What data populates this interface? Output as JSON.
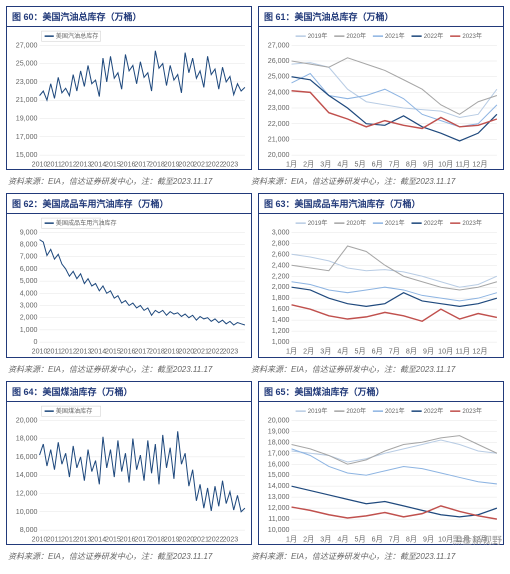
{
  "watermark": "黑金新视野",
  "source_text": "资料来源：EIA，信达证券研发中心，注：截至2023.11.17",
  "colors": {
    "border": "#223a7a",
    "title": "#223a7a",
    "grid": "#e5e5e5",
    "axis_text": "#666666"
  },
  "year_legend": {
    "labels": [
      "2019年",
      "2020年",
      "2021年",
      "2022年",
      "2023年"
    ],
    "colors": [
      "#b8cce4",
      "#a6a6a6",
      "#8db4e2",
      "#1f497d",
      "#c0504d"
    ]
  },
  "months": [
    "1月",
    "2月",
    "3月",
    "4月",
    "5月",
    "6月",
    "7月",
    "8月",
    "9月",
    "10月",
    "11月",
    "12月"
  ],
  "years_axis": [
    "2010",
    "2011",
    "2012",
    "2013",
    "2014",
    "2015",
    "2016",
    "2017",
    "2018",
    "2019",
    "2020",
    "2021",
    "2022",
    "2023"
  ],
  "charts": [
    {
      "id": "c60",
      "title": "图 60：美国汽油总库存（万桶）",
      "type": "line-timeseries",
      "legend_single": "美国汽油总库存",
      "legend_color": "#1f497d",
      "ylim": [
        15000,
        27000
      ],
      "ytick_step": 2000,
      "series": [
        {
          "color": "#1f497d",
          "width": 1,
          "data": [
            21500,
            22000,
            21000,
            22800,
            21200,
            23500,
            21800,
            22300,
            21500,
            23800,
            22000,
            24200,
            22500,
            24800,
            22800,
            23200,
            21400,
            25600,
            23000,
            25800,
            23400,
            24000,
            22200,
            26000,
            24200,
            24800,
            22800,
            25200,
            23500,
            24000,
            22000,
            26400,
            24500,
            25000,
            22600,
            24800,
            23200,
            23800,
            21800,
            26200,
            24000,
            25600,
            23400,
            24200,
            22400,
            25800,
            23800,
            24400,
            22200,
            24600,
            23000,
            23600,
            21600,
            22800,
            22000,
            22400
          ]
        }
      ]
    },
    {
      "id": "c61",
      "title": "图 61：美国汽油总库存（万桶）",
      "type": "line-monthly-multi",
      "ylim": [
        20000,
        27000
      ],
      "ytick_step": 1000,
      "series": [
        {
          "color": "#b8cce4",
          "width": 1,
          "data": [
            25800,
            25900,
            25600,
            24200,
            23400,
            23200,
            23000,
            22900,
            22800,
            22400,
            22600,
            24200
          ]
        },
        {
          "color": "#a6a6a6",
          "width": 1,
          "data": [
            26000,
            25800,
            25600,
            26200,
            25800,
            25400,
            24800,
            24200,
            23200,
            22600,
            23400,
            23800
          ]
        },
        {
          "color": "#8db4e2",
          "width": 1,
          "data": [
            24600,
            25200,
            23800,
            23600,
            23800,
            24200,
            23600,
            22600,
            22200,
            21800,
            22000,
            23200
          ]
        },
        {
          "color": "#1f497d",
          "width": 1.2,
          "data": [
            25000,
            24800,
            23800,
            23000,
            22000,
            21900,
            22500,
            21800,
            21400,
            20900,
            21400,
            22600
          ]
        },
        {
          "color": "#c0504d",
          "width": 1.4,
          "data": [
            24100,
            24000,
            22700,
            22300,
            21800,
            22200,
            21900,
            21700,
            22400,
            21800,
            21900,
            22300
          ]
        }
      ]
    },
    {
      "id": "c62",
      "title": "图 62：美国成品车用汽油库存（万桶）",
      "type": "line-timeseries",
      "legend_single": "美国成品车用汽油库存",
      "legend_color": "#1f497d",
      "ylim": [
        0,
        9000
      ],
      "ytick_step": 1000,
      "series": [
        {
          "color": "#1f497d",
          "width": 1,
          "data": [
            8400,
            8200,
            7100,
            7600,
            6800,
            7200,
            6400,
            6000,
            5400,
            5800,
            5200,
            5600,
            4800,
            5200,
            4600,
            4800,
            4200,
            4600,
            4000,
            4200,
            3600,
            3800,
            3200,
            3400,
            3000,
            3200,
            2800,
            3000,
            2600,
            2800,
            2200,
            2600,
            2400,
            2600,
            2200,
            2500,
            2300,
            2400,
            2100,
            2300,
            2000,
            2200,
            1800,
            2100,
            1900,
            2000,
            1700,
            1900,
            1600,
            1800,
            1500,
            1700,
            1400,
            1600,
            1500,
            1400
          ]
        }
      ]
    },
    {
      "id": "c63",
      "title": "图 63：美国成品车用汽油库存（万桶）",
      "type": "line-monthly-multi",
      "ylim": [
        1000,
        3000
      ],
      "ytick_step": 200,
      "series": [
        {
          "color": "#b8cce4",
          "width": 1,
          "data": [
            2600,
            2550,
            2480,
            2350,
            2300,
            2320,
            2280,
            2200,
            2100,
            2000,
            2050,
            2200
          ]
        },
        {
          "color": "#a6a6a6",
          "width": 1,
          "data": [
            2400,
            2350,
            2300,
            2750,
            2650,
            2400,
            2200,
            2100,
            2000,
            1950,
            2000,
            2100
          ]
        },
        {
          "color": "#8db4e2",
          "width": 1,
          "data": [
            2100,
            2050,
            1950,
            1900,
            1950,
            2000,
            1950,
            1850,
            1800,
            1750,
            1800,
            1900
          ]
        },
        {
          "color": "#1f497d",
          "width": 1.2,
          "data": [
            2000,
            1950,
            1800,
            1700,
            1650,
            1700,
            1900,
            1750,
            1700,
            1650,
            1700,
            1800
          ]
        },
        {
          "color": "#c0504d",
          "width": 1.4,
          "data": [
            1680,
            1600,
            1480,
            1420,
            1460,
            1540,
            1480,
            1380,
            1600,
            1420,
            1520,
            1450
          ]
        }
      ]
    },
    {
      "id": "c64",
      "title": "图 64：美国煤油库存（万桶）",
      "type": "line-timeseries",
      "legend_single": "美国煤油库存",
      "legend_color": "#1f497d",
      "ylim": [
        8000,
        20000
      ],
      "ytick_step": 2000,
      "series": [
        {
          "color": "#1f497d",
          "width": 1,
          "data": [
            16200,
            17400,
            15000,
            16800,
            14600,
            17600,
            15200,
            16400,
            13800,
            17200,
            14800,
            16000,
            13400,
            16800,
            14400,
            15600,
            13000,
            18200,
            14800,
            16800,
            13800,
            17800,
            14400,
            16400,
            13200,
            18000,
            14600,
            16200,
            13400,
            17800,
            14200,
            17400,
            13000,
            18400,
            14800,
            17000,
            13600,
            18800,
            15200,
            16400,
            12800,
            14600,
            11200,
            13000,
            10400,
            12600,
            10100,
            12800,
            10600,
            13400,
            10900,
            12200,
            10200,
            11800,
            10000,
            10400
          ]
        }
      ]
    },
    {
      "id": "c65",
      "title": "图 65：美国煤油库存（万桶）",
      "type": "line-monthly-multi",
      "ylim": [
        10000,
        20000
      ],
      "ytick_step": 1000,
      "series": [
        {
          "color": "#b8cce4",
          "width": 1,
          "data": [
            17200,
            17000,
            16800,
            16200,
            16500,
            17000,
            17400,
            17800,
            18200,
            17800,
            17200,
            17000
          ]
        },
        {
          "color": "#a6a6a6",
          "width": 1,
          "data": [
            17800,
            17400,
            16800,
            16000,
            16400,
            17200,
            17800,
            18000,
            18400,
            18600,
            17800,
            17000
          ]
        },
        {
          "color": "#8db4e2",
          "width": 1,
          "data": [
            17400,
            16800,
            15800,
            15200,
            15000,
            15400,
            15800,
            15600,
            15200,
            14800,
            14400,
            14200
          ]
        },
        {
          "color": "#1f497d",
          "width": 1.2,
          "data": [
            14000,
            13600,
            13200,
            12800,
            12400,
            12600,
            12200,
            11800,
            11400,
            11200,
            11400,
            12000
          ]
        },
        {
          "color": "#c0504d",
          "width": 1.4,
          "data": [
            12100,
            11800,
            11400,
            11100,
            11300,
            11600,
            11200,
            11500,
            12200,
            11700,
            11300,
            11000
          ]
        }
      ]
    }
  ]
}
